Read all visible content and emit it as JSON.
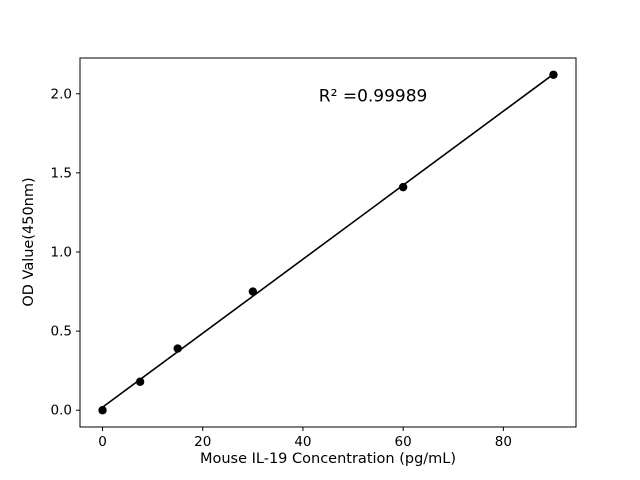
{
  "chart_data": {
    "type": "scatter",
    "title": "",
    "xlabel": "Mouse IL-19 Concentration (pg/mL)",
    "ylabel": "OD Value(450nm)",
    "annotation": "R² =0.99989",
    "annotation_xy": [
      54,
      1.95
    ],
    "x": [
      0,
      7.5,
      15,
      30,
      60,
      90
    ],
    "y": [
      0.0,
      0.18,
      0.39,
      0.75,
      1.41,
      2.12
    ],
    "xtick_values": [
      0,
      20,
      40,
      60,
      80
    ],
    "xtick_labels": [
      "0",
      "20",
      "40",
      "60",
      "80"
    ],
    "ytick_values": [
      0.0,
      0.5,
      1.0,
      1.5,
      2.0
    ],
    "ytick_labels": [
      "0.0",
      "0.5",
      "1.0",
      "1.5",
      "2.0"
    ],
    "xlim": [
      -4.5,
      94.5
    ],
    "ylim": [
      -0.106,
      2.226
    ],
    "fit": "linear",
    "line_color": "#000000",
    "marker_color": "#000000",
    "background_color": "#ffffff",
    "legend": "none",
    "grid": "off"
  }
}
